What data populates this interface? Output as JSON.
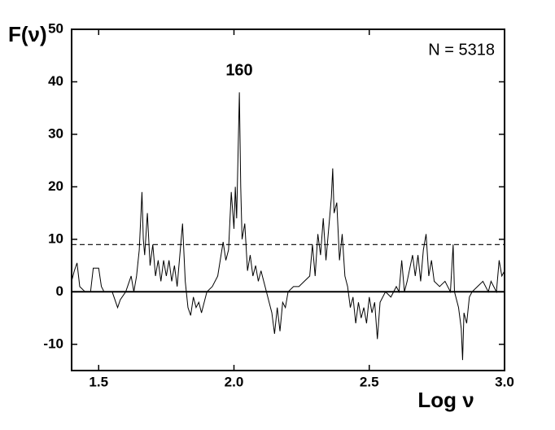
{
  "chart_data": {
    "type": "line",
    "xlabel": "Log ν",
    "ylabel": "F(ν)",
    "annotations": [
      "N = 5318",
      "160"
    ],
    "xlim": [
      1.4,
      3.0
    ],
    "ylim": [
      -15,
      50
    ],
    "xticks": [
      1.5,
      {
        "value": 2,
        "label": "2.0"
      },
      2.5,
      {
        "value": 3,
        "label": "3.0"
      }
    ],
    "yticks": [
      -10,
      0,
      10,
      20,
      30,
      40,
      50
    ],
    "reference_lines": [
      {
        "value": 9,
        "style": "dashed",
        "color": "#000000"
      }
    ],
    "series": [
      {
        "name": "F(ν)",
        "color": "#000000",
        "x": [
          1.4,
          1.41,
          1.42,
          1.43,
          1.44,
          1.45,
          1.47,
          1.48,
          1.5,
          1.51,
          1.52,
          1.55,
          1.57,
          1.58,
          1.6,
          1.62,
          1.63,
          1.64,
          1.65,
          1.66,
          1.665,
          1.67,
          1.68,
          1.69,
          1.7,
          1.71,
          1.72,
          1.73,
          1.74,
          1.75,
          1.76,
          1.77,
          1.78,
          1.79,
          1.8,
          1.81,
          1.82,
          1.83,
          1.84,
          1.85,
          1.86,
          1.87,
          1.88,
          1.9,
          1.92,
          1.94,
          1.96,
          1.97,
          1.98,
          1.99,
          2.0,
          2.005,
          2.01,
          2.02,
          2.025,
          2.03,
          2.04,
          2.05,
          2.06,
          2.07,
          2.08,
          2.09,
          2.1,
          2.12,
          2.13,
          2.14,
          2.15,
          2.16,
          2.17,
          2.18,
          2.19,
          2.2,
          2.22,
          2.24,
          2.26,
          2.28,
          2.29,
          2.3,
          2.31,
          2.32,
          2.33,
          2.34,
          2.35,
          2.36,
          2.365,
          2.37,
          2.38,
          2.39,
          2.4,
          2.41,
          2.42,
          2.43,
          2.44,
          2.45,
          2.46,
          2.47,
          2.48,
          2.49,
          2.5,
          2.51,
          2.52,
          2.53,
          2.54,
          2.56,
          2.58,
          2.6,
          2.61,
          2.62,
          2.63,
          2.64,
          2.66,
          2.67,
          2.68,
          2.69,
          2.7,
          2.71,
          2.72,
          2.73,
          2.74,
          2.76,
          2.78,
          2.8,
          2.81,
          2.815,
          2.82,
          2.83,
          2.84,
          2.845,
          2.85,
          2.86,
          2.87,
          2.88,
          2.9,
          2.92,
          2.94,
          2.95,
          2.97,
          2.98,
          2.99,
          3.0
        ],
        "values": [
          2,
          4,
          5.5,
          1,
          0.5,
          0,
          0,
          4.5,
          4.5,
          1,
          0,
          0,
          -3,
          -1.5,
          0,
          3,
          0,
          3,
          8,
          19,
          10,
          7,
          15,
          5,
          9,
          3,
          6,
          2,
          6,
          3,
          6,
          2,
          5,
          1,
          7,
          13,
          2,
          -3,
          -4.5,
          -1,
          -3,
          -2,
          -4,
          0,
          1,
          3,
          9.5,
          6,
          8,
          19,
          12,
          20,
          14,
          38,
          20,
          10,
          13,
          4,
          7,
          3,
          5,
          2,
          4,
          0,
          -2,
          -4,
          -8,
          -3,
          -7.5,
          -2,
          -3,
          0,
          1,
          1,
          2,
          3,
          9,
          3,
          11,
          7,
          14,
          6,
          12,
          18,
          23.5,
          15,
          17,
          6,
          11,
          3,
          1,
          -3,
          -1,
          -6,
          -2,
          -5,
          -3,
          -6,
          -1,
          -4,
          -2,
          -9,
          -2,
          0,
          -1,
          1,
          0,
          6,
          0,
          2,
          7,
          3,
          7,
          2,
          8,
          11,
          3,
          6,
          2,
          1,
          2,
          0,
          9,
          0,
          -1,
          -3,
          -7,
          -13,
          -4,
          -6,
          -1,
          0,
          1,
          2,
          0,
          2,
          0,
          6,
          3,
          4
        ]
      }
    ]
  }
}
